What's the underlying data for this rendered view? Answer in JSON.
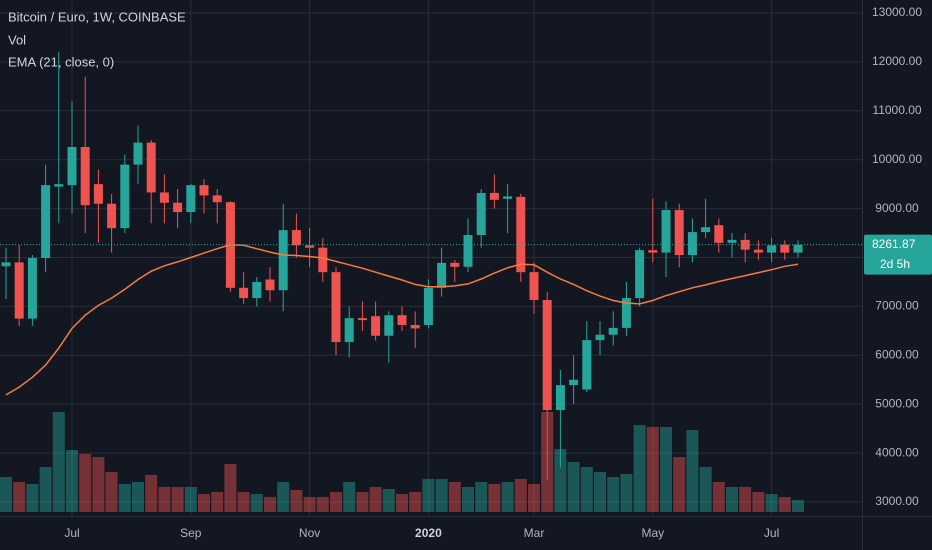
{
  "chart_data": {
    "type": "candlestick",
    "title": "Bitcoin / Euro, 1W, COINBASE",
    "categories": [
      null,
      null,
      null,
      null,
      null,
      "Jul",
      null,
      null,
      null,
      null,
      null,
      null,
      null,
      null,
      "Sep",
      null,
      null,
      null,
      null,
      null,
      null,
      null,
      null,
      "Nov",
      null,
      null,
      null,
      null,
      null,
      null,
      null,
      null,
      "2020",
      null,
      null,
      null,
      null,
      null,
      null,
      null,
      "Mar",
      null,
      null,
      null,
      null,
      null,
      null,
      null,
      null,
      "May",
      null,
      null,
      null,
      null,
      null,
      null,
      null,
      null,
      "Jul",
      null,
      null
    ],
    "open": [
      7820,
      7900,
      6750,
      7990,
      9450,
      9480,
      10260,
      9500,
      9100,
      8600,
      9900,
      10350,
      9330,
      9120,
      8930,
      9480,
      9270,
      9130,
      7380,
      7170,
      7550,
      7330,
      8560,
      8250,
      8200,
      7700,
      6270,
      6760,
      6800,
      6400,
      6820,
      6620,
      6620,
      7380,
      7890,
      7810,
      8460,
      9320,
      9200,
      9240,
      7700,
      7130,
      4880,
      5390,
      5300,
      6310,
      6420,
      6560,
      7170,
      8150,
      8100,
      8970,
      8050,
      8520,
      8660,
      8300,
      8360,
      8160,
      8100,
      8260,
      8100
    ],
    "high": [
      8200,
      8250,
      8050,
      9900,
      12200,
      11200,
      11700,
      9800,
      9300,
      10100,
      10700,
      10400,
      9700,
      9400,
      9500,
      9600,
      9400,
      9150,
      7700,
      7600,
      7800,
      9100,
      8900,
      8600,
      8400,
      7800,
      7000,
      7100,
      7100,
      6900,
      7000,
      6900,
      7550,
      8200,
      7950,
      8800,
      9400,
      9700,
      9500,
      9300,
      7900,
      7300,
      5700,
      6000,
      6700,
      6700,
      6900,
      7500,
      8200,
      9200,
      9150,
      9100,
      8800,
      9200,
      8800,
      8500,
      8500,
      8350,
      8400,
      8350,
      8350
    ],
    "low": [
      7150,
      6600,
      6600,
      7700,
      8700,
      8900,
      8500,
      8300,
      8100,
      8500,
      9500,
      8700,
      8700,
      8600,
      8700,
      8900,
      8700,
      7300,
      7050,
      7000,
      7100,
      6900,
      8000,
      7800,
      7500,
      6000,
      5950,
      6500,
      6300,
      5850,
      6500,
      6150,
      6550,
      7200,
      7500,
      7700,
      8200,
      9000,
      8500,
      7500,
      6850,
      3450,
      3700,
      5000,
      5250,
      6000,
      6200,
      6400,
      7000,
      7900,
      7600,
      7800,
      7900,
      8400,
      8100,
      8000,
      7900,
      7950,
      7900,
      7950,
      8000
    ],
    "close": [
      7900,
      6750,
      7990,
      9480,
      9500,
      10260,
      9070,
      9100,
      8600,
      9900,
      10350,
      9330,
      9120,
      8930,
      9480,
      9270,
      9130,
      7380,
      7170,
      7500,
      7330,
      8560,
      8250,
      8200,
      7700,
      6270,
      6760,
      6720,
      6400,
      6820,
      6620,
      6550,
      7380,
      7890,
      7810,
      8460,
      9320,
      9180,
      9250,
      7700,
      7130,
      4880,
      5390,
      5500,
      6310,
      6420,
      6560,
      7170,
      8150,
      8100,
      8970,
      8050,
      8520,
      8620,
      8300,
      8360,
      8160,
      8100,
      8250,
      8100,
      8261.87
    ],
    "up_color": "#26a69a",
    "down_color": "#ef5350",
    "series": [
      {
        "name": "Vol",
        "values": [
          35,
          30,
          28,
          45,
          100,
          62,
          58,
          55,
          40,
          28,
          30,
          37,
          25,
          25,
          25,
          18,
          20,
          48,
          20,
          18,
          15,
          30,
          22,
          15,
          15,
          20,
          30,
          20,
          25,
          23,
          18,
          20,
          33,
          33,
          30,
          25,
          30,
          28,
          30,
          33,
          28,
          100,
          63,
          50,
          45,
          40,
          35,
          38,
          87,
          85,
          85,
          55,
          82,
          45,
          30,
          25,
          25,
          20,
          18,
          15,
          12
        ]
      },
      {
        "name": "EMA (21, close, 0)",
        "color": "#f57c3b",
        "values": [
          5190,
          5350,
          5550,
          5800,
          6150,
          6550,
          6820,
          7020,
          7170,
          7350,
          7550,
          7720,
          7830,
          7910,
          8000,
          8090,
          8180,
          8260,
          8250,
          8180,
          8110,
          8050,
          8040,
          8020,
          7990,
          7920,
          7850,
          7780,
          7700,
          7620,
          7540,
          7450,
          7400,
          7400,
          7420,
          7460,
          7560,
          7680,
          7790,
          7860,
          7850,
          7700,
          7560,
          7450,
          7320,
          7210,
          7120,
          7070,
          7050,
          7120,
          7220,
          7300,
          7380,
          7440,
          7510,
          7570,
          7630,
          7690,
          7750,
          7820,
          7860
        ]
      }
    ],
    "ylim": [
      2795,
      13266
    ],
    "yticks": [
      {
        "value": 3000,
        "label": "3000.00"
      },
      {
        "value": 4000,
        "label": "4000.00"
      },
      {
        "value": 5000,
        "label": "5000.00"
      },
      {
        "value": 6000,
        "label": "6000.00"
      },
      {
        "value": 7000,
        "label": "7000.00"
      },
      {
        "value": 8000,
        "label": "8000.00"
      },
      {
        "value": 9000,
        "label": "9000.00"
      },
      {
        "value": 10000,
        "label": "10000.00"
      },
      {
        "value": 11000,
        "label": "11000.00"
      },
      {
        "value": 12000,
        "label": "12000.00"
      },
      {
        "value": 13000,
        "label": "13000.00"
      }
    ],
    "grid": true,
    "last_price": 8261.87,
    "countdown": "2d 5h"
  }
}
